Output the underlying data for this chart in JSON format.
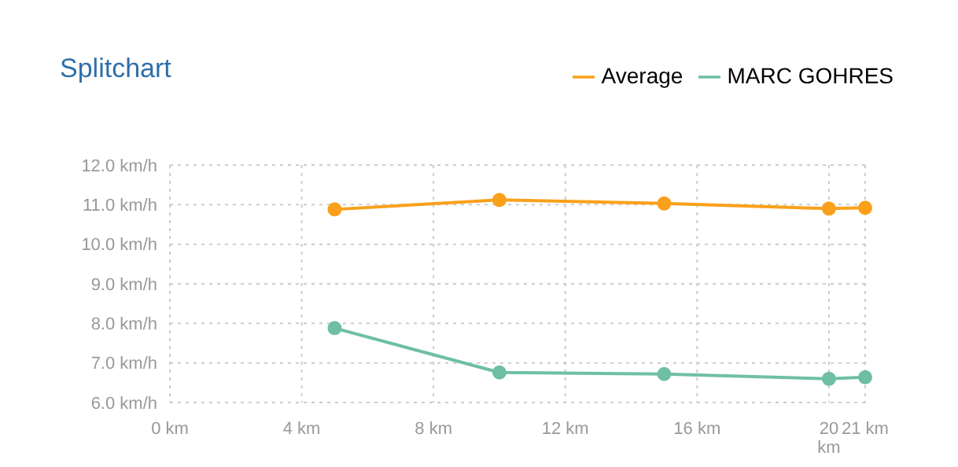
{
  "chart_data": {
    "type": "line",
    "title": "Splitchart",
    "x": [
      5,
      10,
      15,
      20,
      21.1
    ],
    "series": [
      {
        "name": "MARC GOHRES",
        "color": "#6fbfa3",
        "values": [
          7.88,
          6.76,
          6.72,
          6.6,
          6.64
        ]
      },
      {
        "name": "Average",
        "color": "#f9a11b",
        "values": [
          10.88,
          11.12,
          11.03,
          10.9,
          10.92
        ]
      }
    ],
    "xlim": [
      0,
      21.1
    ],
    "xticks": [
      {
        "value": 0,
        "label": "0 km"
      },
      {
        "value": 4,
        "label": "4 km"
      },
      {
        "value": 8,
        "label": "8 km"
      },
      {
        "value": 12,
        "label": "12 km"
      },
      {
        "value": 16,
        "label": "16 km"
      },
      {
        "value": 20,
        "label": "20 km"
      },
      {
        "value": 21.1,
        "label": "21 km"
      }
    ],
    "ylim": [
      6,
      12
    ],
    "yticks": [
      {
        "value": 6,
        "label": "6.0 km/h"
      },
      {
        "value": 7,
        "label": "7.0 km/h"
      },
      {
        "value": 8,
        "label": "8.0 km/h"
      },
      {
        "value": 9,
        "label": "9.0 km/h"
      },
      {
        "value": 10,
        "label": "10.0 km/h"
      },
      {
        "value": 11,
        "label": "11.0 km/h"
      },
      {
        "value": 12,
        "label": "12.0 km/h"
      }
    ],
    "grid": true,
    "legend": "top right",
    "marker": "circle",
    "line_style": "solid"
  }
}
